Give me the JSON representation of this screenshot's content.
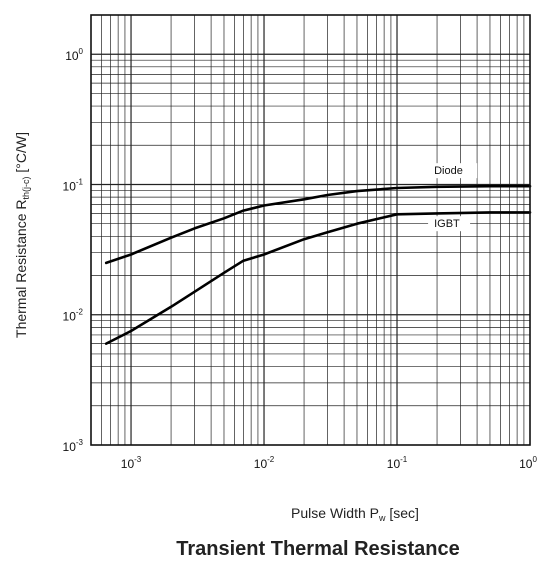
{
  "chart_data": {
    "type": "line",
    "title": "Transient Thermal Resistance",
    "xlabel": {
      "main": "Pulse Width P",
      "sub": "w",
      "unit": " [sec]"
    },
    "ylabel": {
      "main": "Thermal Resistance R",
      "sub": "th(j-c)",
      "unit": " [°C/W]"
    },
    "xscale": "log",
    "yscale": "log",
    "xlim": [
      0.0005,
      1
    ],
    "ylim": [
      0.001,
      2
    ],
    "grid": true,
    "x_ticks": [
      {
        "value": 0.001,
        "base": "10",
        "exp": "-3"
      },
      {
        "value": 0.01,
        "base": "10",
        "exp": "-2"
      },
      {
        "value": 0.1,
        "base": "10",
        "exp": "-1"
      },
      {
        "value": 1,
        "base": "10",
        "exp": "0"
      }
    ],
    "y_ticks": [
      {
        "value": 0.001,
        "base": "10",
        "exp": "-3"
      },
      {
        "value": 0.01,
        "base": "10",
        "exp": "-2"
      },
      {
        "value": 0.1,
        "base": "10",
        "exp": "-1"
      },
      {
        "value": 1,
        "base": "10",
        "exp": "0"
      }
    ],
    "series": [
      {
        "name": "Diode",
        "label_at": {
          "x": 0.19,
          "y": 0.12
        },
        "points": [
          [
            0.00065,
            0.025
          ],
          [
            0.001,
            0.029
          ],
          [
            0.002,
            0.039
          ],
          [
            0.003,
            0.046
          ],
          [
            0.005,
            0.055
          ],
          [
            0.007,
            0.063
          ],
          [
            0.01,
            0.069
          ],
          [
            0.02,
            0.077
          ],
          [
            0.03,
            0.083
          ],
          [
            0.05,
            0.089
          ],
          [
            0.1,
            0.094
          ],
          [
            0.2,
            0.096
          ],
          [
            0.5,
            0.097
          ],
          [
            1,
            0.097
          ]
        ]
      },
      {
        "name": "IGBT",
        "label_at": {
          "x": 0.19,
          "y": 0.047
        },
        "points": [
          [
            0.00065,
            0.006
          ],
          [
            0.001,
            0.0075
          ],
          [
            0.002,
            0.0115
          ],
          [
            0.003,
            0.015
          ],
          [
            0.005,
            0.021
          ],
          [
            0.007,
            0.026
          ],
          [
            0.01,
            0.029
          ],
          [
            0.02,
            0.038
          ],
          [
            0.03,
            0.043
          ],
          [
            0.05,
            0.05
          ],
          [
            0.1,
            0.059
          ],
          [
            0.2,
            0.06
          ],
          [
            0.5,
            0.061
          ],
          [
            1,
            0.061
          ]
        ]
      }
    ]
  }
}
